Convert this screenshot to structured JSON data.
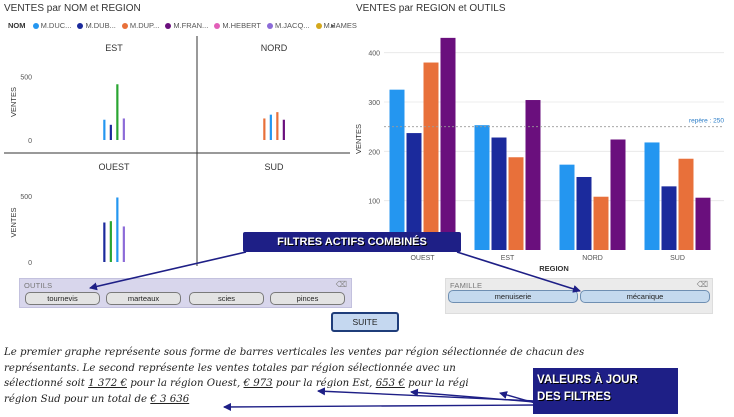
{
  "left_chart": {
    "title": "VENTES par NOM et REGION",
    "legend": {
      "label": "NOM",
      "items": [
        {
          "name": "M.DUC...",
          "color": "#2496f0"
        },
        {
          "name": "M.DUB...",
          "color": "#1b2a9c"
        },
        {
          "name": "M.DUP...",
          "color": "#e8703a"
        },
        {
          "name": "M.FRAN...",
          "color": "#6a0f7d"
        },
        {
          "name": "M.HEBERT",
          "color": "#e25fb8"
        },
        {
          "name": "M.JACQ...",
          "color": "#8c6bd8"
        },
        {
          "name": "M.JAMES",
          "color": "#d4a81c"
        }
      ],
      "scroll_icon": "chevron-right-icon"
    }
  },
  "right_chart": {
    "title": "VENTES par REGION et OUTILS"
  },
  "chart_data": [
    {
      "type": "bar",
      "title": "VENTES par NOM et REGION",
      "ylabel": "VENTES",
      "panels": [
        {
          "region": "EST",
          "ylim": [
            0,
            600
          ],
          "ticks": [
            0,
            500
          ],
          "bars": [
            {
              "color": "#2496f0",
              "value": 160
            },
            {
              "color": "#1b2a9c",
              "value": 120
            },
            {
              "color": "#2aa532",
              "value": 440
            },
            {
              "color": "#8c6bd8",
              "value": 170
            }
          ]
        },
        {
          "region": "NORD",
          "ylim": [
            0,
            600
          ],
          "ticks": [],
          "bars": [
            {
              "color": "#e8703a",
              "value": 170
            },
            {
              "color": "#2496f0",
              "value": 200
            },
            {
              "color": "#e8703a",
              "value": 220
            },
            {
              "color": "#6a0f7d",
              "value": 160
            }
          ]
        },
        {
          "region": "OUEST",
          "ylim": [
            0,
            600
          ],
          "ticks": [
            0,
            500
          ],
          "bars": [
            {
              "color": "#1b2a9c",
              "value": 300
            },
            {
              "color": "#2aa532",
              "value": 310
            },
            {
              "color": "#2496f0",
              "value": 490
            },
            {
              "color": "#8c6bd8",
              "value": 270
            }
          ]
        },
        {
          "region": "SUD",
          "ylim": [
            0,
            600
          ],
          "ticks": [],
          "bars": []
        }
      ]
    },
    {
      "type": "bar",
      "title": "VENTES par REGION et OUTILS",
      "xlabel": "REGION",
      "ylabel": "VENTES",
      "ylim": [
        0,
        450
      ],
      "yticks": [
        100,
        200,
        300,
        400
      ],
      "categories": [
        "OUEST",
        "EST",
        "NORD",
        "SUD"
      ],
      "series": [
        {
          "color": "#2496f0",
          "values": [
            325,
            253,
            173,
            218
          ]
        },
        {
          "color": "#1b2a9c",
          "values": [
            237,
            228,
            148,
            129
          ]
        },
        {
          "color": "#e8703a",
          "values": [
            380,
            188,
            108,
            185
          ]
        },
        {
          "color": "#6a0f7d",
          "values": [
            430,
            304,
            224,
            106
          ]
        }
      ],
      "reference_line": {
        "value": 250,
        "label": "repère : 250"
      }
    }
  ],
  "outils_slicer": {
    "title": "OUTILS",
    "icon": "eraser-icon",
    "options": [
      "tournevis",
      "marteaux",
      "scies",
      "pinces"
    ]
  },
  "famille_slicer": {
    "title": "FAMILLE",
    "icon": "eraser-icon",
    "options": [
      "menuiserie",
      "mécanique"
    ]
  },
  "suite_button": "SUITE",
  "callouts": {
    "filters": "FILTRES ACTIFS COMBINÉS",
    "values_line1": "VALEURS À JOUR",
    "values_line2": "DES FILTRES"
  },
  "paragraph": {
    "line1": "Le premier graphe représente sous forme de barres verticales les ventes par région sélectionnée de chacun des",
    "line2": "représentants. Le second représente les ventes totales par région sélectionnée avec un",
    "line3a": "sélectionné soit",
    "v_ouest": "1 372 €",
    "line3b": "pour la région Ouest,",
    "v_est": "€ 973",
    "line3c": "pour la région Est,",
    "v_nord": "653 €",
    "line3d": "pour la régi",
    "line4a": "région Sud pour un total de",
    "v_total": "€ 3 636"
  }
}
